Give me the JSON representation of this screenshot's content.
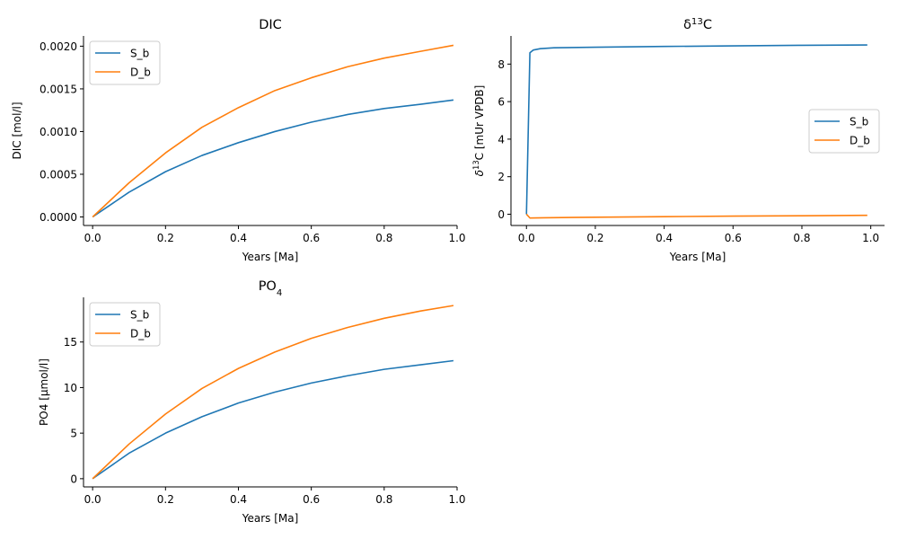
{
  "chart_data": [
    {
      "type": "line",
      "title_parts": [
        {
          "text": "DIC"
        }
      ],
      "xlabel": "Years [Ma]",
      "ylabel_parts": [
        {
          "text": "DIC [mol/l]"
        }
      ],
      "xlim": [
        -0.025,
        1.0
      ],
      "ylim": [
        -0.0001,
        0.00212
      ],
      "xticks": [
        0.0,
        0.2,
        0.4,
        0.6,
        0.8,
        1.0
      ],
      "xtick_labels": [
        "0.0",
        "0.2",
        "0.4",
        "0.6",
        "0.8",
        "1.0"
      ],
      "yticks": [
        0.0,
        0.0005,
        0.001,
        0.0015,
        0.002
      ],
      "ytick_labels": [
        "0.0000",
        "0.0005",
        "0.0010",
        "0.0015",
        "0.0020"
      ],
      "legend_position": "top-left",
      "x": [
        0.0,
        0.1,
        0.2,
        0.3,
        0.4,
        0.5,
        0.6,
        0.7,
        0.8,
        0.9,
        0.99
      ],
      "series": [
        {
          "name": "S_b",
          "color": "#1f77b4",
          "values": [
            0.0,
            0.00029,
            0.00053,
            0.00072,
            0.00087,
            0.001,
            0.00111,
            0.0012,
            0.00127,
            0.00132,
            0.00137
          ]
        },
        {
          "name": "D_b",
          "color": "#ff7f0e",
          "values": [
            0.0,
            0.0004,
            0.00075,
            0.00105,
            0.00128,
            0.00148,
            0.00163,
            0.00176,
            0.00186,
            0.00194,
            0.00201
          ]
        }
      ]
    },
    {
      "type": "line",
      "title_parts": [
        {
          "text": "δ"
        },
        {
          "text": "13",
          "sup": true
        },
        {
          "text": "C"
        }
      ],
      "xlabel": "Years [Ma]",
      "ylabel_parts": [
        {
          "text": "δ",
          "italic": true
        },
        {
          "text": "13",
          "sup": true
        },
        {
          "text": "C [mUr VPDB]"
        }
      ],
      "xlim": [
        -0.045,
        1.04
      ],
      "ylim": [
        -0.6,
        9.5
      ],
      "xticks": [
        0.0,
        0.2,
        0.4,
        0.6,
        0.8,
        1.0
      ],
      "xtick_labels": [
        "0.0",
        "0.2",
        "0.4",
        "0.6",
        "0.8",
        "1.0"
      ],
      "yticks": [
        0,
        2,
        4,
        6,
        8
      ],
      "ytick_labels": [
        "0",
        "2",
        "4",
        "6",
        "8"
      ],
      "legend_position": "center-right",
      "series": [
        {
          "name": "S_b",
          "color": "#1f77b4",
          "x": [
            0.0,
            0.01,
            0.02,
            0.04,
            0.08,
            0.2,
            0.4,
            0.6,
            0.8,
            0.99
          ],
          "values": [
            0.0,
            8.6,
            8.75,
            8.82,
            8.87,
            8.9,
            8.94,
            8.97,
            9.0,
            9.02
          ]
        },
        {
          "name": "D_b",
          "color": "#ff7f0e",
          "x": [
            0.0,
            0.01,
            0.05,
            0.2,
            0.4,
            0.6,
            0.8,
            0.99
          ],
          "values": [
            0.0,
            -0.2,
            -0.19,
            -0.16,
            -0.13,
            -0.1,
            -0.08,
            -0.06
          ]
        }
      ]
    },
    {
      "type": "line",
      "title_parts": [
        {
          "text": "PO"
        },
        {
          "text": "4",
          "sub": true
        }
      ],
      "xlabel": "Years [Ma]",
      "ylabel_parts": [
        {
          "text": "PO4 [µmol/l]"
        }
      ],
      "xlim": [
        -0.025,
        1.0
      ],
      "ylim": [
        -0.9,
        19.9
      ],
      "xticks": [
        0.0,
        0.2,
        0.4,
        0.6,
        0.8,
        1.0
      ],
      "xtick_labels": [
        "0.0",
        "0.2",
        "0.4",
        "0.6",
        "0.8",
        "1.0"
      ],
      "yticks": [
        0,
        5,
        10,
        15
      ],
      "ytick_labels": [
        "0",
        "5",
        "10",
        "15"
      ],
      "legend_position": "top-left",
      "x": [
        0.0,
        0.1,
        0.2,
        0.3,
        0.4,
        0.5,
        0.6,
        0.7,
        0.8,
        0.9,
        0.99
      ],
      "series": [
        {
          "name": "S_b",
          "color": "#1f77b4",
          "values": [
            0.0,
            2.8,
            5.0,
            6.8,
            8.3,
            9.5,
            10.5,
            11.3,
            12.0,
            12.5,
            12.95
          ]
        },
        {
          "name": "D_b",
          "color": "#ff7f0e",
          "values": [
            0.0,
            3.8,
            7.1,
            9.9,
            12.1,
            13.9,
            15.4,
            16.6,
            17.6,
            18.4,
            19.0
          ]
        }
      ]
    }
  ]
}
